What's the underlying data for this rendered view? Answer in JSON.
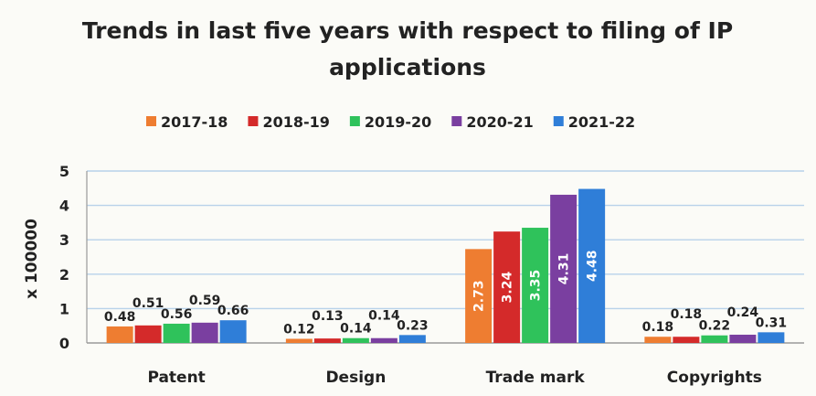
{
  "chart_data": {
    "type": "bar",
    "title_lines": [
      "Trends in last five years with respect to filing of IP",
      "applications"
    ],
    "ylabel": "x 100000",
    "xlabel": "",
    "ylim": [
      0,
      5
    ],
    "yticks": [
      "0",
      "1",
      "2",
      "3",
      "4",
      "5"
    ],
    "grid": true,
    "legend_position": "top",
    "categories": [
      "Patent",
      "Design",
      "Trade mark",
      "Copyrights"
    ],
    "series": [
      {
        "name": "2017-18",
        "color": "#ee7d31",
        "values": [
          0.48,
          0.12,
          2.73,
          0.18
        ],
        "labels": [
          "0.48",
          "0.12",
          "2.73",
          "0.18"
        ]
      },
      {
        "name": "2018-19",
        "color": "#d42a2a",
        "values": [
          0.51,
          0.13,
          3.24,
          0.18
        ],
        "labels": [
          "0.51",
          "0.13",
          "3.24",
          "0.18"
        ]
      },
      {
        "name": "2019-20",
        "color": "#2fc25b",
        "values": [
          0.56,
          0.14,
          3.35,
          0.22
        ],
        "labels": [
          "0.56",
          "0.14",
          "3.35",
          "0.22"
        ]
      },
      {
        "name": "2020-21",
        "color": "#7a3fa0",
        "values": [
          0.59,
          0.14,
          4.31,
          0.24
        ],
        "labels": [
          "0.59",
          "0.14",
          "4.31",
          "0.24"
        ]
      },
      {
        "name": "2021-22",
        "color": "#2f7ed8",
        "values": [
          0.66,
          0.23,
          4.48,
          0.31
        ],
        "labels": [
          "0.66",
          "0.23",
          "4.48",
          "0.31"
        ]
      }
    ]
  }
}
